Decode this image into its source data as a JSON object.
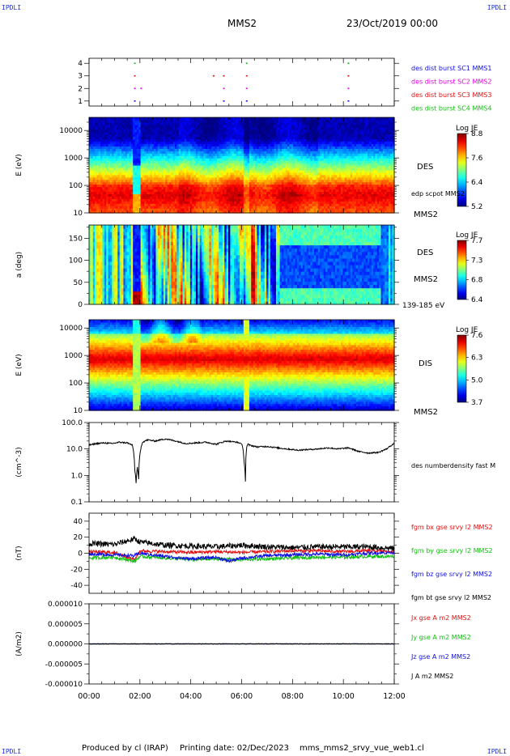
{
  "corners": {
    "tl": "IPDLI",
    "tr": "IPDLI",
    "bl": "IPDLI",
    "br": "IPDLI"
  },
  "header": {
    "spacecraft": "MMS2",
    "date": "23/Oct/2019 00:00"
  },
  "footer": {
    "produced": "Produced by cl (IRAP)",
    "printing": "Printing date: 02/Dec/2023",
    "template": "mms_mms2_srvy_vue_web1.cl"
  },
  "colors": {
    "red": "#e01010",
    "green": "#10c010",
    "blue": "#1010e0",
    "magenta": "#e000e0",
    "black": "#000000"
  },
  "xaxis": {
    "ticks": [
      "00:00",
      "02:00",
      "04:00",
      "06:00",
      "08:00",
      "10:00",
      "12:00"
    ],
    "range_hours": [
      0,
      12
    ]
  },
  "chart_data": [
    {
      "type": "scatter",
      "panel": "burst-availability",
      "ytick_labels": [
        "1",
        "2",
        "3",
        "4"
      ],
      "ylim": [
        0.6,
        4.4
      ],
      "series": [
        {
          "name": "des dist burst SC1 MMS1",
          "color": "#1010e0",
          "y": 1,
          "x_hours": [
            1.8,
            5.3,
            6.2,
            10.2
          ]
        },
        {
          "name": "des dist burst SC2 MMS2",
          "color": "#e000e0",
          "y": 2,
          "x_hours": [
            1.8,
            2.05,
            5.3,
            6.2,
            10.2
          ]
        },
        {
          "name": "des dist burst SC3 MMS3",
          "color": "#e01010",
          "y": 3,
          "x_hours": [
            1.8,
            4.9,
            5.3,
            6.2,
            10.2
          ]
        },
        {
          "name": "des dist burst SC4 MMS4",
          "color": "#10c010",
          "y": 4,
          "x_hours": [
            1.8,
            6.2,
            10.2
          ]
        }
      ]
    },
    {
      "type": "heatmap",
      "panel": "des-energy-spectrogram",
      "ylabel": "E (eV)",
      "yscale": "log",
      "ylim": [
        10,
        30000
      ],
      "ytick_labels": [
        "10",
        "100",
        "1000",
        "10000"
      ],
      "label": "DES",
      "trace_label": "edp scpot MMS2",
      "sc_label": "MMS2",
      "colorbar": {
        "title": "Log JE",
        "ticks": [
          "8.8",
          "7.6",
          "6.4",
          "5.2"
        ],
        "range": [
          5.2,
          8.8
        ]
      },
      "peak_band_eV": [
        20,
        100
      ]
    },
    {
      "type": "heatmap",
      "panel": "des-pitch-angle",
      "ylabel": "a (deg)",
      "ylim": [
        0,
        180
      ],
      "ytick_labels": [
        "0",
        "50",
        "100",
        "150"
      ],
      "label": "DES",
      "sc_label": "MMS2",
      "energy_label": "139-185 eV",
      "colorbar": {
        "title": "Log JE",
        "ticks": [
          "7.7",
          "7.3",
          "6.8",
          "6.4"
        ],
        "range": [
          6.4,
          7.7
        ]
      }
    },
    {
      "type": "heatmap",
      "panel": "dis-energy-spectrogram",
      "ylabel": "E (eV)",
      "yscale": "log",
      "ylim": [
        10,
        20000
      ],
      "ytick_labels": [
        "10",
        "100",
        "1000",
        "10000"
      ],
      "label": "DIS",
      "sc_label": "MMS2",
      "colorbar": {
        "title": "Log JE",
        "ticks": [
          "7.6",
          "6.3",
          "5.0",
          "3.7"
        ],
        "range": [
          3.7,
          7.6
        ]
      },
      "peak_band_eV": [
        300,
        2000
      ]
    },
    {
      "type": "line",
      "panel": "density",
      "ylabel": "(cm^-3)",
      "yscale": "log",
      "ylim": [
        0.1,
        100
      ],
      "ytick_labels": [
        "0.1",
        "1.0",
        "10.0",
        "100.0"
      ],
      "series": [
        {
          "name": "des numberdensity fast M",
          "color": "#000000",
          "x_hours": [
            0,
            0.3,
            0.6,
            0.9,
            1.2,
            1.5,
            1.7,
            1.8,
            1.85,
            1.9,
            1.95,
            2.0,
            2.1,
            2.3,
            2.6,
            3.0,
            3.4,
            3.8,
            4.2,
            4.6,
            5.0,
            5.4,
            5.8,
            6.0,
            6.1,
            6.15,
            6.2,
            6.25,
            6.3,
            6.6,
            7.0,
            7.4,
            7.8,
            8.2,
            8.6,
            9.0,
            9.4,
            9.8,
            10.2,
            10.6,
            11.0,
            11.4,
            11.7,
            12.0
          ],
          "values": [
            14,
            16,
            17,
            16,
            18,
            17,
            14,
            1.5,
            0.5,
            2.0,
            0.7,
            6.0,
            18,
            22,
            20,
            24,
            20,
            16,
            17,
            18,
            15,
            20,
            18,
            16,
            3.0,
            0.6,
            12,
            15,
            14,
            12,
            12.5,
            11,
            10,
            9,
            9.5,
            10,
            11,
            10,
            11,
            8,
            7,
            7.5,
            10,
            16
          ]
        }
      ]
    },
    {
      "type": "line",
      "panel": "magnetic-field",
      "ylabel": "(nT)",
      "ylim": [
        -50,
        50
      ],
      "ytick_labels": [
        "-40",
        "-20",
        "0",
        "20",
        "40"
      ],
      "series": [
        {
          "name": "fgm bx gse srvy l2 MMS2",
          "color": "#e01010",
          "x_hours": [
            0,
            1,
            1.8,
            2.0,
            3,
            4,
            5,
            6,
            7,
            8,
            9,
            10,
            11,
            12
          ],
          "values": [
            2,
            1,
            -8,
            3,
            2,
            1,
            2,
            1,
            2,
            3,
            3,
            2,
            3,
            2
          ]
        },
        {
          "name": "fgm by gse srvy l2 MMS2",
          "color": "#10c010",
          "x_hours": [
            0,
            1,
            1.8,
            2.0,
            3,
            4,
            5,
            6,
            7,
            8,
            9,
            10,
            11,
            12
          ],
          "values": [
            -6,
            -5,
            -10,
            -4,
            -6,
            -8,
            -7,
            -8,
            -7,
            -6,
            -5,
            -5,
            -4,
            -4
          ]
        },
        {
          "name": "fgm bz gse srvy l2 MMS2",
          "color": "#1010e0",
          "x_hours": [
            0,
            1,
            1.8,
            2.0,
            3,
            4,
            5,
            5.5,
            6,
            7,
            8,
            9,
            10,
            11,
            12
          ],
          "values": [
            -1,
            -2,
            -3,
            0,
            -4,
            -7,
            -5,
            -10,
            -6,
            -3,
            -2,
            -1,
            -2,
            0,
            1
          ]
        },
        {
          "name": "fgm bt gse srvy l2 MMS2",
          "color": "#000000",
          "x_hours": [
            0,
            1,
            1.8,
            2.0,
            3,
            4,
            5,
            6,
            7,
            8,
            9,
            10,
            11,
            12
          ],
          "values": [
            12,
            11,
            18,
            14,
            10,
            9,
            8,
            10,
            8,
            7,
            8,
            8,
            8,
            6
          ]
        }
      ]
    },
    {
      "type": "line",
      "panel": "current-density",
      "ylabel": "(A/m2)",
      "ylim": [
        -1e-05,
        1e-05
      ],
      "ytick_labels": [
        "-0.000010",
        "-0.000005",
        "0.000000",
        "0.000005",
        "0.000010"
      ],
      "series": [
        {
          "name": "Jx gse A m2 MMS2",
          "color": "#e01010",
          "x_hours": [
            0,
            12
          ],
          "values": [
            0,
            0
          ]
        },
        {
          "name": "Jy gse A m2 MMS2",
          "color": "#10c010",
          "x_hours": [
            0,
            12
          ],
          "values": [
            0,
            0
          ]
        },
        {
          "name": "Jz gse A m2 MMS2",
          "color": "#1010e0",
          "x_hours": [
            0,
            12
          ],
          "values": [
            0,
            0
          ]
        },
        {
          "name": "J A m2 MMS2",
          "color": "#000000",
          "x_hours": [
            0,
            12
          ],
          "values": [
            0,
            0
          ]
        }
      ]
    }
  ]
}
